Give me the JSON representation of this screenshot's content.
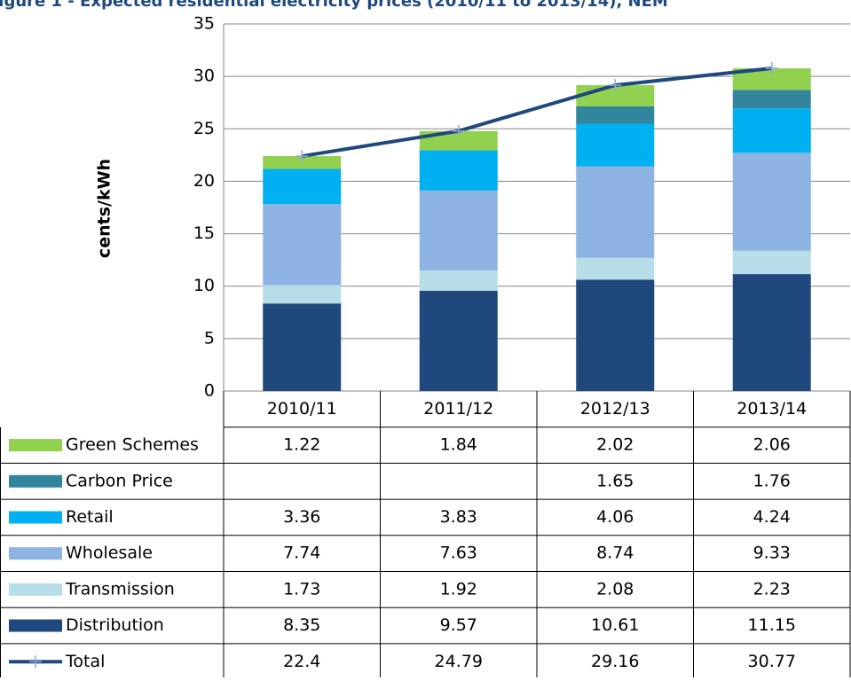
{
  "chart_data": {
    "type": "bar",
    "stacked": true,
    "title": "Figure 1 - Expected residential electricity prices (2010/11 to 2013/14), NEM",
    "y_label": "cents/kWh",
    "categories": [
      "2010/11",
      "2011/12",
      "2012/13",
      "2013/14"
    ],
    "series": [
      {
        "name": "Green Schemes",
        "color": "#92d050",
        "values": [
          1.22,
          1.84,
          2.02,
          2.06
        ]
      },
      {
        "name": "Carbon Price",
        "color": "#31859c",
        "values": [
          null,
          null,
          1.65,
          1.76
        ]
      },
      {
        "name": "Retail",
        "color": "#00b0f0",
        "values": [
          3.36,
          3.83,
          4.06,
          4.24
        ]
      },
      {
        "name": "Wholesale",
        "color": "#8db3e2",
        "values": [
          7.74,
          7.63,
          8.74,
          9.33
        ]
      },
      {
        "name": "Transmission",
        "color": "#b7dee8",
        "values": [
          1.73,
          1.92,
          2.08,
          2.23
        ]
      },
      {
        "name": "Distribution",
        "color": "#1f497d",
        "values": [
          8.35,
          9.57,
          10.61,
          11.15
        ]
      },
      {
        "name": "Total",
        "type": "line",
        "color": "#1f497d",
        "marker_color": "#8ea9db",
        "values": [
          22.4,
          24.79,
          29.16,
          30.77
        ]
      }
    ],
    "ylim": [
      0,
      35
    ],
    "yticks": [
      0,
      5,
      10,
      15,
      20,
      25,
      30,
      35
    ],
    "grid": true,
    "data_table": true
  }
}
